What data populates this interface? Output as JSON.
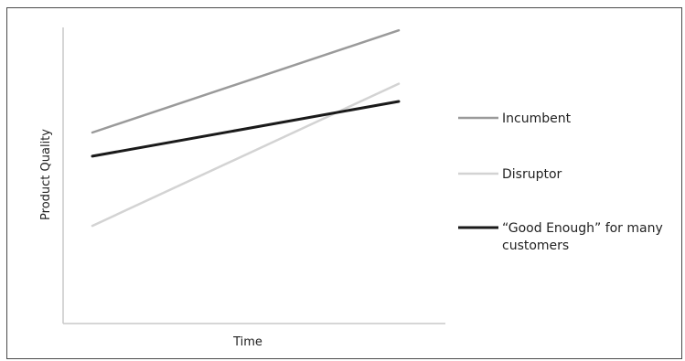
{
  "chart_data": {
    "type": "line",
    "title": "",
    "xlabel": "Time",
    "ylabel": "Product Quality",
    "xlim": [
      0,
      1
    ],
    "ylim": [
      0,
      1
    ],
    "grid": false,
    "legend_position": "right",
    "series": [
      {
        "name": "Incumbent",
        "color": "#9a9a9a",
        "x": [
          0,
          1
        ],
        "y": [
          0.645,
          0.99
        ]
      },
      {
        "name": "Disruptor",
        "color": "#d3d3d3",
        "x": [
          0,
          1
        ],
        "y": [
          0.33,
          0.81
        ]
      },
      {
        "name": "“Good Enough” for many customers",
        "name_lines": [
          "“Good Enough” for many",
          "customers"
        ],
        "color": "#1a1a1a",
        "x": [
          0,
          1
        ],
        "y": [
          0.565,
          0.75
        ]
      }
    ]
  }
}
